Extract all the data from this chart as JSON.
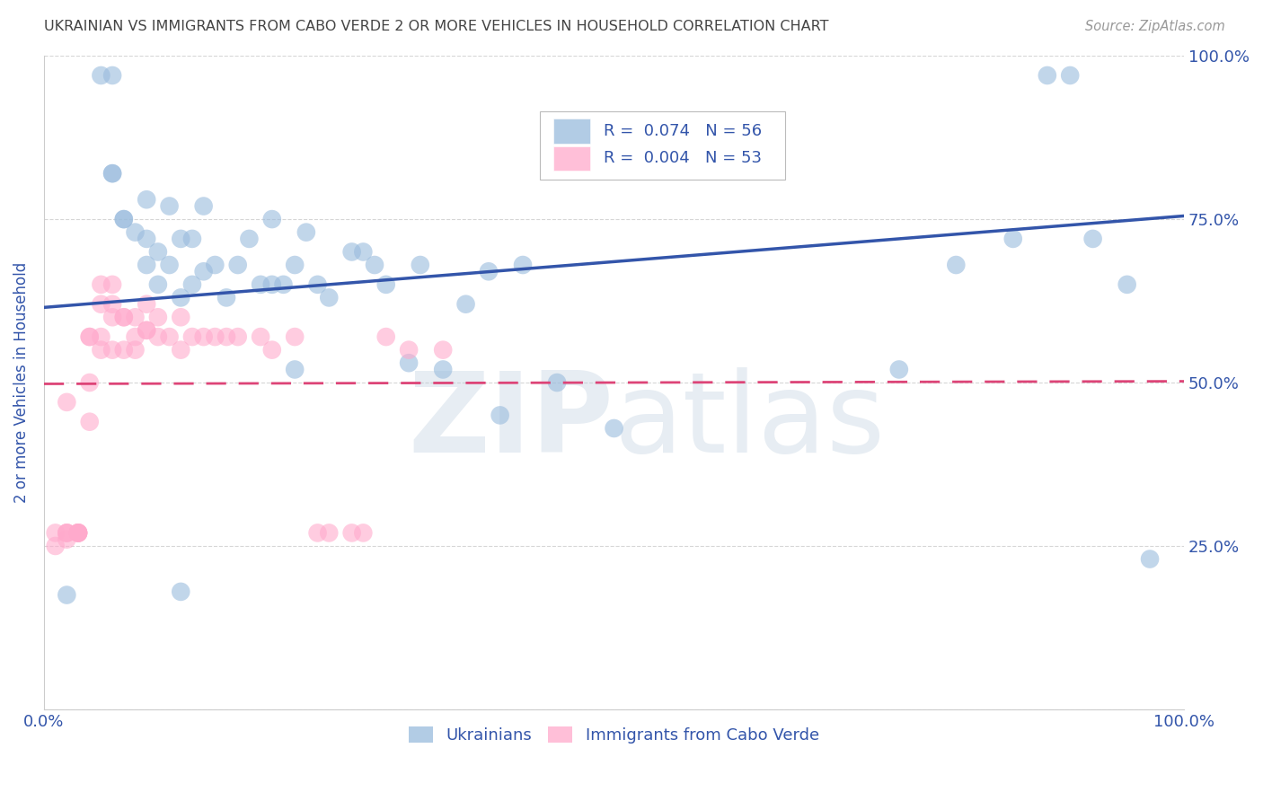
{
  "title": "UKRAINIAN VS IMMIGRANTS FROM CABO VERDE 2 OR MORE VEHICLES IN HOUSEHOLD CORRELATION CHART",
  "source": "Source: ZipAtlas.com",
  "ylabel": "2 or more Vehicles in Household",
  "xmin": 0.0,
  "xmax": 1.0,
  "ymin": 0.0,
  "ymax": 1.0,
  "yticks": [
    0.0,
    0.25,
    0.5,
    0.75,
    1.0
  ],
  "right_tick_labels": [
    "",
    "25.0%",
    "50.0%",
    "75.0%",
    "100.0%"
  ],
  "legend_r_blue": "R =  0.074",
  "legend_n_blue": "N = 56",
  "legend_r_pink": "R =  0.004",
  "legend_n_pink": "N = 53",
  "blue_color": "#99BBDD",
  "pink_color": "#FFAACC",
  "blue_line_color": "#3355AA",
  "pink_line_color": "#DD4477",
  "title_color": "#444444",
  "axis_label_color": "#3355AA",
  "tick_label_color": "#3355AA",
  "watermark_color": "#CCDDEEFF",
  "blue_trend_y_start": 0.615,
  "blue_trend_y_end": 0.755,
  "pink_trend_y_start": 0.498,
  "pink_trend_y_end": 0.502,
  "blue_scatter_x": [
    0.02,
    0.05,
    0.06,
    0.06,
    0.06,
    0.07,
    0.07,
    0.08,
    0.09,
    0.09,
    0.09,
    0.1,
    0.1,
    0.11,
    0.11,
    0.12,
    0.12,
    0.13,
    0.13,
    0.14,
    0.14,
    0.15,
    0.16,
    0.17,
    0.18,
    0.19,
    0.2,
    0.2,
    0.21,
    0.22,
    0.23,
    0.24,
    0.25,
    0.27,
    0.28,
    0.29,
    0.3,
    0.32,
    0.33,
    0.35,
    0.37,
    0.39,
    0.4,
    0.42,
    0.45,
    0.5,
    0.12,
    0.22,
    0.75,
    0.8,
    0.85,
    0.88,
    0.9,
    0.92,
    0.95,
    0.97
  ],
  "blue_scatter_y": [
    0.175,
    0.97,
    0.97,
    0.82,
    0.82,
    0.75,
    0.75,
    0.73,
    0.68,
    0.72,
    0.78,
    0.65,
    0.7,
    0.68,
    0.77,
    0.72,
    0.63,
    0.65,
    0.72,
    0.67,
    0.77,
    0.68,
    0.63,
    0.68,
    0.72,
    0.65,
    0.65,
    0.75,
    0.65,
    0.68,
    0.73,
    0.65,
    0.63,
    0.7,
    0.7,
    0.68,
    0.65,
    0.53,
    0.68,
    0.52,
    0.62,
    0.67,
    0.45,
    0.68,
    0.5,
    0.43,
    0.18,
    0.52,
    0.52,
    0.68,
    0.72,
    0.97,
    0.97,
    0.72,
    0.65,
    0.23
  ],
  "pink_scatter_x": [
    0.01,
    0.01,
    0.02,
    0.02,
    0.02,
    0.02,
    0.02,
    0.03,
    0.03,
    0.03,
    0.03,
    0.03,
    0.04,
    0.04,
    0.04,
    0.04,
    0.05,
    0.05,
    0.05,
    0.05,
    0.06,
    0.06,
    0.06,
    0.06,
    0.07,
    0.07,
    0.07,
    0.08,
    0.08,
    0.08,
    0.09,
    0.09,
    0.09,
    0.1,
    0.1,
    0.11,
    0.12,
    0.12,
    0.13,
    0.14,
    0.15,
    0.16,
    0.17,
    0.19,
    0.2,
    0.22,
    0.24,
    0.25,
    0.27,
    0.28,
    0.3,
    0.32,
    0.35
  ],
  "pink_scatter_y": [
    0.27,
    0.25,
    0.47,
    0.26,
    0.27,
    0.27,
    0.27,
    0.27,
    0.27,
    0.27,
    0.27,
    0.27,
    0.5,
    0.44,
    0.57,
    0.57,
    0.62,
    0.55,
    0.57,
    0.65,
    0.55,
    0.6,
    0.62,
    0.65,
    0.6,
    0.55,
    0.6,
    0.57,
    0.55,
    0.6,
    0.58,
    0.58,
    0.62,
    0.6,
    0.57,
    0.57,
    0.55,
    0.6,
    0.57,
    0.57,
    0.57,
    0.57,
    0.57,
    0.57,
    0.55,
    0.57,
    0.27,
    0.27,
    0.27,
    0.27,
    0.57,
    0.55,
    0.55
  ]
}
